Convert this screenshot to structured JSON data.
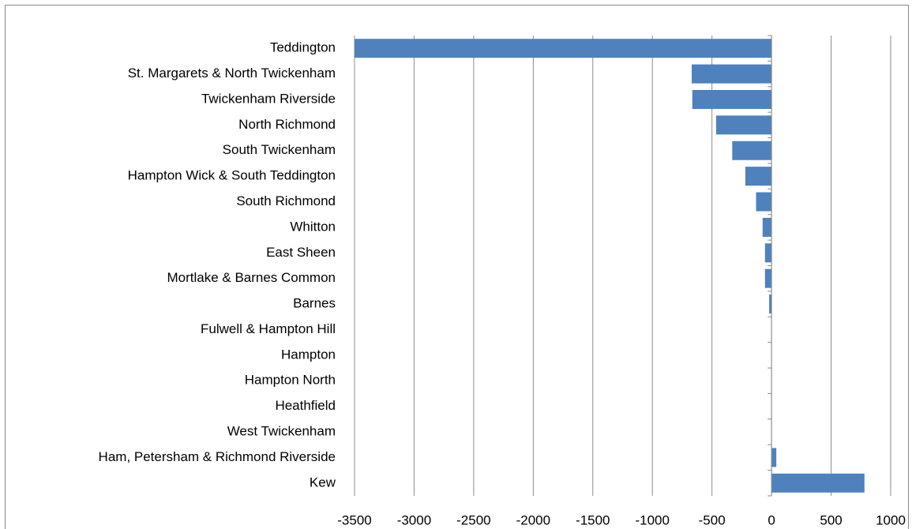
{
  "chart_data": {
    "type": "bar",
    "orientation": "horizontal",
    "categories": [
      "Teddington",
      "St. Margarets & North Twickenham",
      "Twickenham Riverside",
      "North Richmond",
      "South Twickenham",
      "Hampton Wick & South Teddington",
      "South Richmond",
      "Whitton",
      "East Sheen",
      "Mortlake & Barnes Common",
      "Barnes",
      "Fulwell & Hampton Hill",
      "Hampton",
      "Hampton North",
      "Heathfield",
      "West Twickenham",
      "Ham, Petersham & Richmond Riverside",
      "Kew"
    ],
    "values": [
      -3500,
      -670,
      -665,
      -465,
      -330,
      -220,
      -130,
      -75,
      -55,
      -55,
      -20,
      0,
      0,
      0,
      0,
      0,
      40,
      780
    ],
    "color": "#4f81bd",
    "xlim": [
      -3500,
      1000
    ],
    "xticks": [
      -3500,
      -3000,
      -2500,
      -2000,
      -1500,
      -1000,
      -500,
      0,
      500,
      1000
    ],
    "grid": true
  }
}
